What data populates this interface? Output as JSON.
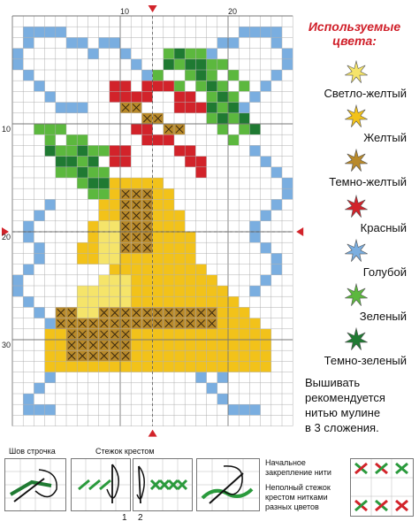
{
  "legend": {
    "title_line1": "Используемые",
    "title_line2": "цвета:",
    "items": [
      {
        "label": "Светло-желтый",
        "color": "#f5e46a",
        "icon": "star-light-yellow-icon"
      },
      {
        "label": "Желтый",
        "color": "#f2c21a",
        "icon": "star-yellow-icon"
      },
      {
        "label": "Темно-желтый",
        "color": "#b98a2a",
        "icon": "star-dark-yellow-icon"
      },
      {
        "label": "Красный",
        "color": "#d2232a",
        "icon": "star-red-icon"
      },
      {
        "label": "Голубой",
        "color": "#7aaee0",
        "icon": "star-light-blue-icon"
      },
      {
        "label": "Зеленый",
        "color": "#5cb83e",
        "icon": "star-green-icon"
      },
      {
        "label": "Темно-зеленый",
        "color": "#1f7a32",
        "icon": "star-dark-green-icon"
      }
    ]
  },
  "note": {
    "line1": "Вышивать",
    "line2": "рекомендуется",
    "line3": "нитью мулине",
    "line4": "в 3 сложения."
  },
  "axis": {
    "top": [
      "10",
      "20"
    ],
    "left": [
      "10",
      "20",
      "30"
    ]
  },
  "bottom": {
    "back_stitch": "Шов строчка",
    "cross_stitch": "Стежок крестом",
    "step1": "1",
    "step2": "2",
    "start_thread_1": "Начальное",
    "start_thread_2": "закрепление нити",
    "partial_1": "Неполный стежок",
    "partial_2": "крестом нитками",
    "partial_3": "разных цветов"
  }
}
